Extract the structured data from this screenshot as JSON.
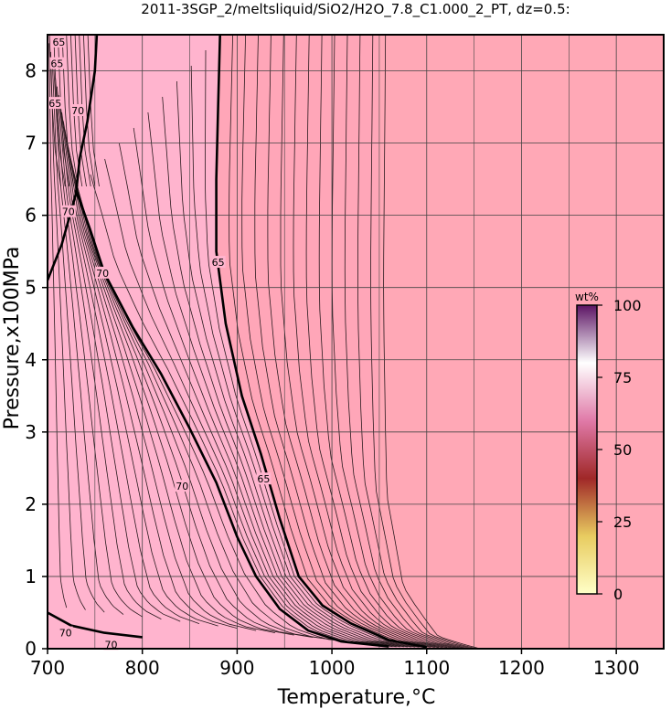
{
  "chart_data": {
    "type": "contour",
    "title": "2011-3SGP_2/meltsliquid/SiO2/H2O_7.8_C1.000_2_PT, dz=0.5:",
    "xlabel": "Temperature,°C",
    "ylabel": "Pressure,x100MPa",
    "xlim": [
      700,
      1350
    ],
    "ylim": [
      0,
      8.5
    ],
    "x_ticks": [
      700,
      800,
      900,
      1000,
      1100,
      1200,
      1300
    ],
    "y_ticks": [
      0,
      1,
      2,
      3,
      4,
      5,
      6,
      7,
      8
    ],
    "grid": true,
    "contour_interval": 0.5,
    "background_color": "#ffa8b6",
    "colors": {
      "low_region": "#ffb4ce",
      "mid_region": "#ffa6b8",
      "high_region": "#ffa8b6"
    },
    "major_contours": [
      {
        "value": 70,
        "points": [
          [
            700,
            0.5
          ],
          [
            725,
            0.32
          ],
          [
            760,
            0.22
          ],
          [
            800,
            0.16
          ]
        ]
      },
      {
        "value": 70,
        "points": [
          [
            700,
            5.1
          ],
          [
            715,
            5.6
          ],
          [
            730,
            6.3
          ],
          [
            734,
            6.8
          ],
          [
            742,
            7.3
          ],
          [
            750,
            8.0
          ],
          [
            752,
            8.5
          ]
        ]
      },
      {
        "value": 70,
        "points": [
          [
            730,
            6.35
          ],
          [
            745,
            5.8
          ],
          [
            760,
            5.2
          ],
          [
            790,
            4.45
          ],
          [
            820,
            3.8
          ],
          [
            850,
            3.05
          ],
          [
            878,
            2.3
          ],
          [
            900,
            1.55
          ],
          [
            920,
            1.0
          ],
          [
            945,
            0.55
          ],
          [
            975,
            0.25
          ],
          [
            1010,
            0.1
          ],
          [
            1060,
            0.03
          ]
        ]
      },
      {
        "value": 65,
        "points": [
          [
            882,
            8.5
          ],
          [
            880,
            7.5
          ],
          [
            878,
            6.5
          ],
          [
            878,
            5.5
          ],
          [
            888,
            4.5
          ],
          [
            905,
            3.5
          ],
          [
            925,
            2.7
          ],
          [
            945,
            1.8
          ],
          [
            965,
            1.0
          ],
          [
            990,
            0.6
          ],
          [
            1020,
            0.35
          ],
          [
            1060,
            0.12
          ],
          [
            1100,
            0.02
          ]
        ]
      }
    ],
    "contour_labels": [
      {
        "text": "70",
        "at": [
          719,
          0.22
        ]
      },
      {
        "text": "70",
        "at": [
          767,
          0.06
        ]
      },
      {
        "text": "70",
        "at": [
          722,
          6.05
        ]
      },
      {
        "text": "70",
        "at": [
          732,
          7.45
        ]
      },
      {
        "text": "70",
        "at": [
          758,
          5.2
        ]
      },
      {
        "text": "70",
        "at": [
          842,
          2.25
        ]
      },
      {
        "text": "65",
        "at": [
          880,
          5.35
        ]
      },
      {
        "text": "65",
        "at": [
          928,
          2.35
        ]
      },
      {
        "text": "65",
        "at": [
          708,
          7.55
        ]
      },
      {
        "text": "65",
        "at": [
          710,
          8.1
        ]
      },
      {
        "text": "65",
        "at": [
          712,
          8.4
        ]
      }
    ],
    "colorbar": {
      "unit": "wt%",
      "range": [
        0,
        100
      ],
      "ticks": [
        0,
        25,
        50,
        75,
        100
      ],
      "colors": [
        "#ffffc8",
        "#e8cc60",
        "#a02828",
        "#e07aa8",
        "#ffffff",
        "#5c1464"
      ]
    }
  }
}
